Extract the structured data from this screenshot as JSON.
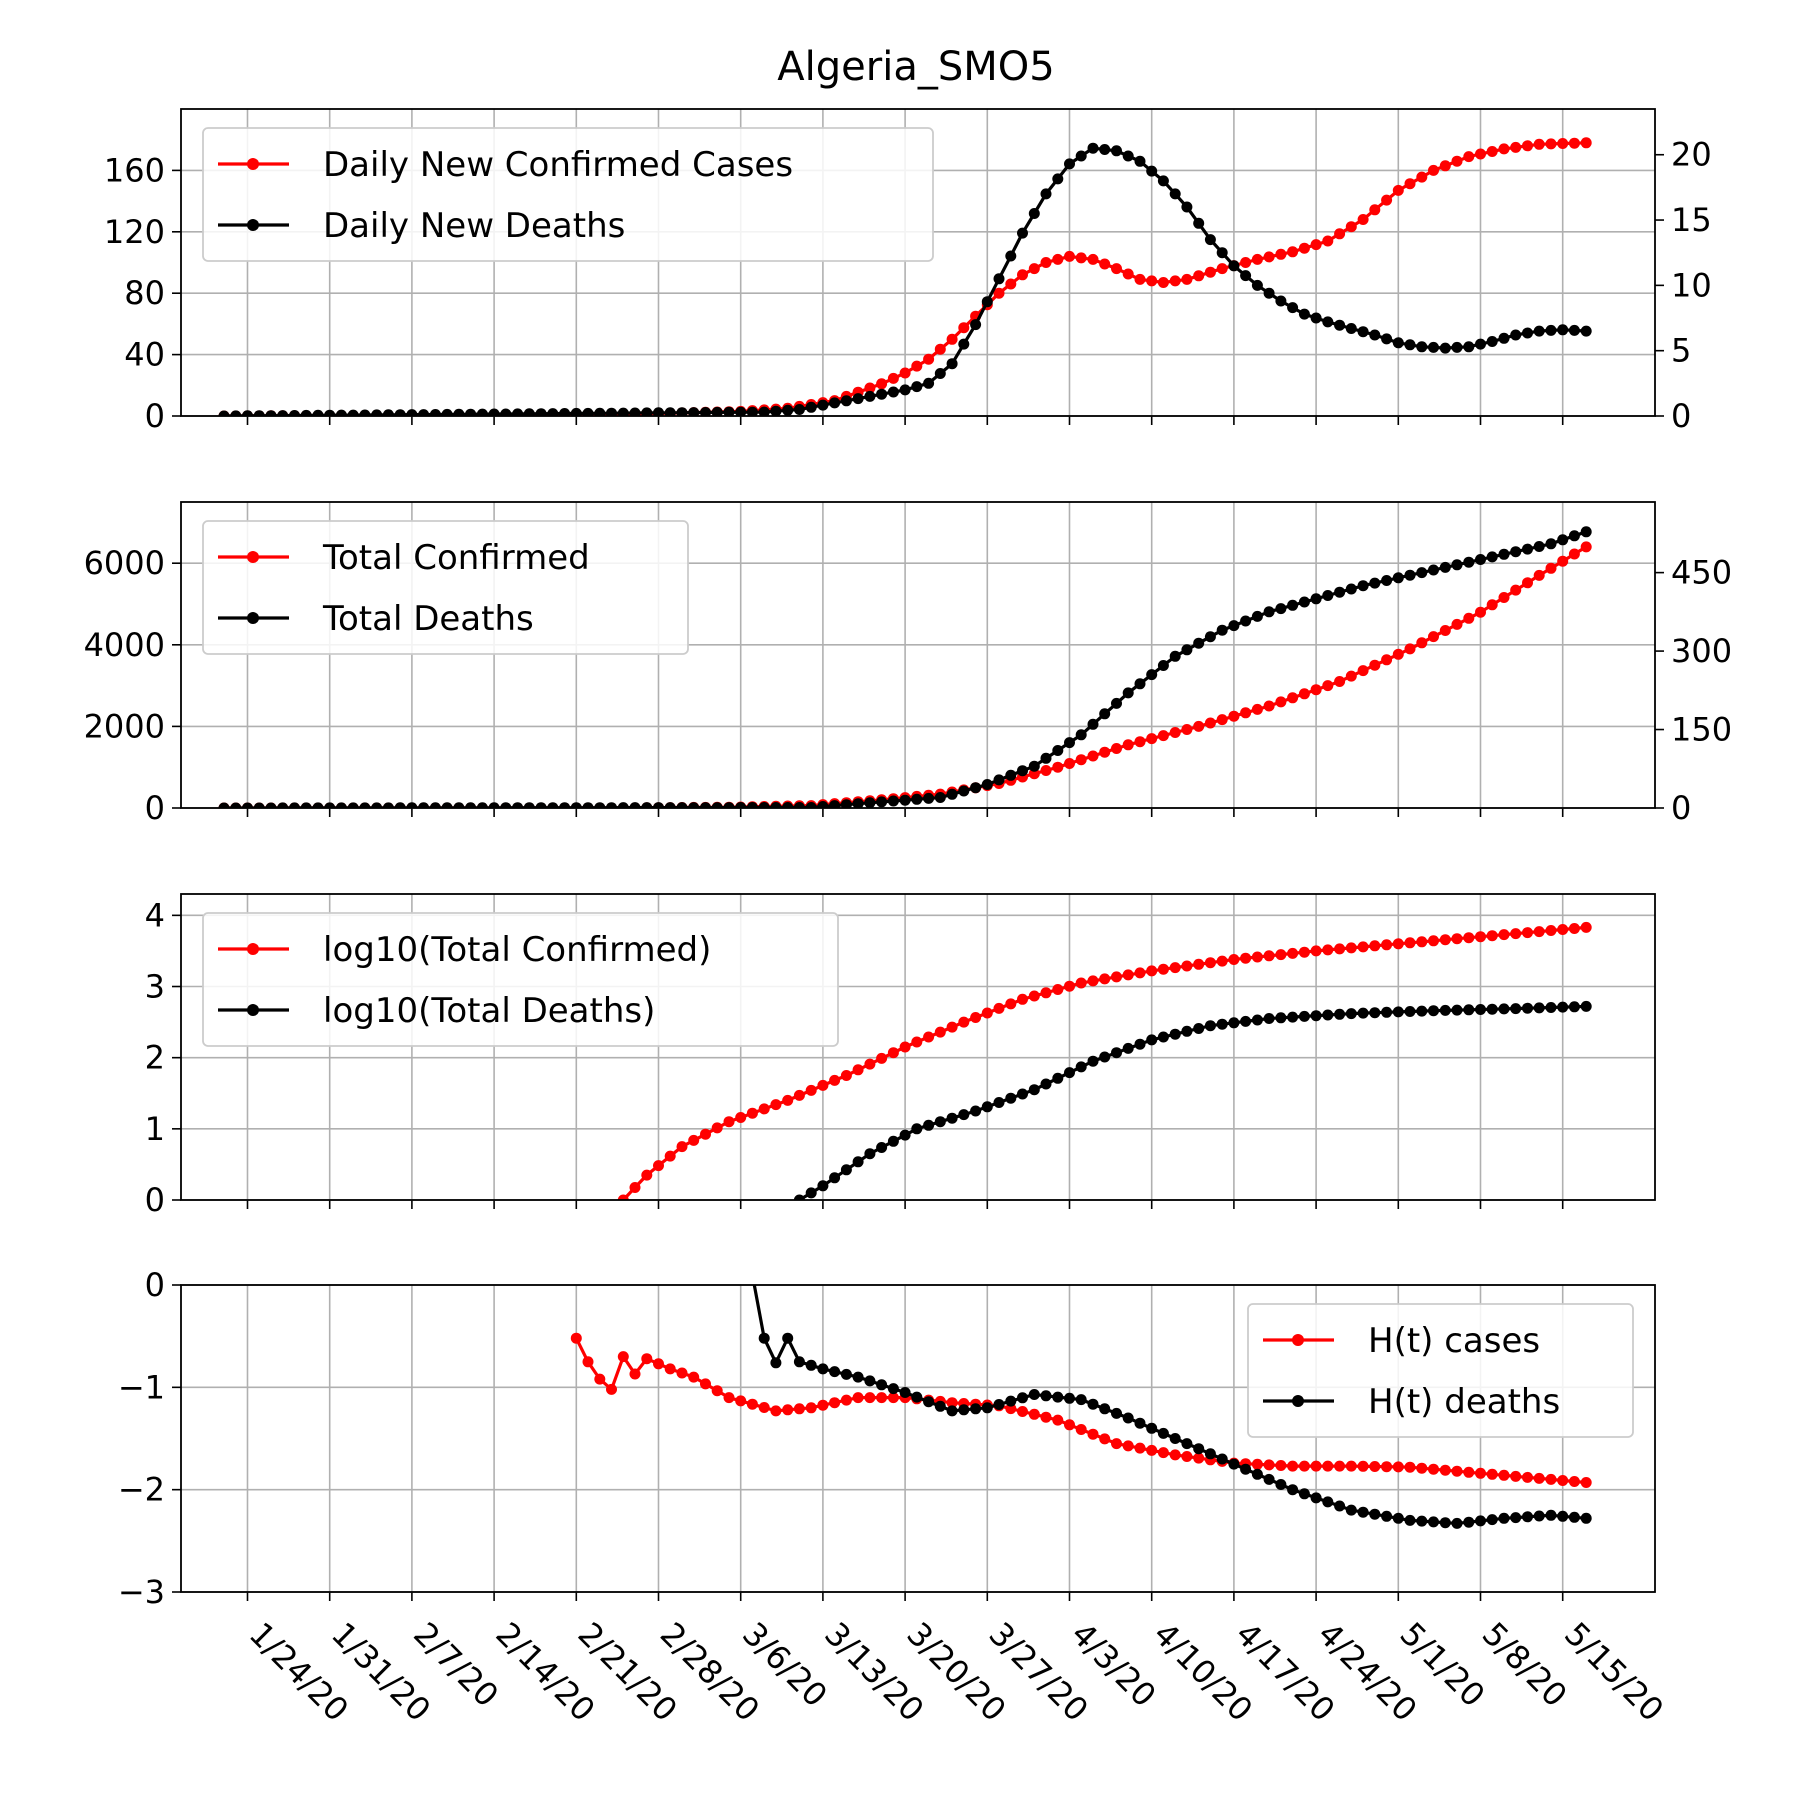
{
  "figure": {
    "title": "Algeria_SMO5"
  },
  "x_tick_labels": [
    "1/24/20",
    "1/31/20",
    "2/7/20",
    "2/14/20",
    "2/21/20",
    "2/28/20",
    "3/6/20",
    "3/13/20",
    "3/20/20",
    "3/27/20",
    "4/3/20",
    "4/10/20",
    "4/17/20",
    "4/24/20",
    "5/1/20",
    "5/8/20",
    "5/15/20"
  ],
  "colors": {
    "cases": "#ff0000",
    "deaths": "#000000",
    "grid": "#b0b0b0"
  },
  "chart_data": [
    {
      "type": "line",
      "panel": "daily",
      "x_start": "2020-01-22",
      "x_end": "2020-05-17",
      "xticks": [
        "1/24/20",
        "1/31/20",
        "2/7/20",
        "2/14/20",
        "2/21/20",
        "2/28/20",
        "3/6/20",
        "3/13/20",
        "3/20/20",
        "3/27/20",
        "4/3/20",
        "4/10/20",
        "4/17/20",
        "4/24/20",
        "5/1/20",
        "5/8/20",
        "5/15/20"
      ],
      "ylim": [
        0,
        200
      ],
      "yticks": [
        0,
        40,
        80,
        120,
        160
      ],
      "y2lim": [
        0,
        23.5
      ],
      "y2ticks": [
        0,
        5,
        10,
        15,
        20
      ],
      "legend_position": "upper-left",
      "grid": true,
      "series": [
        {
          "name": "Daily New Confirmed Cases",
          "axis": "left",
          "points": [
            [
              "2020-01-22",
              0
            ],
            [
              "2020-02-24",
              1
            ],
            [
              "2020-03-01",
              2
            ],
            [
              "2020-03-06",
              3
            ],
            [
              "2020-03-10",
              5
            ],
            [
              "2020-03-14",
              10
            ],
            [
              "2020-03-18",
              21
            ],
            [
              "2020-03-20",
              28
            ],
            [
              "2020-03-22",
              37
            ],
            [
              "2020-03-24",
              50
            ],
            [
              "2020-03-26",
              65
            ],
            [
              "2020-03-28",
              80
            ],
            [
              "2020-03-30",
              92
            ],
            [
              "2020-04-01",
              100
            ],
            [
              "2020-04-03",
              104
            ],
            [
              "2020-04-05",
              102
            ],
            [
              "2020-04-07",
              96
            ],
            [
              "2020-04-09",
              89
            ],
            [
              "2020-04-11",
              87
            ],
            [
              "2020-04-13",
              89
            ],
            [
              "2020-04-16",
              96
            ],
            [
              "2020-04-19",
              102
            ],
            [
              "2020-04-22",
              107
            ],
            [
              "2020-04-25",
              114
            ],
            [
              "2020-04-28",
              128
            ],
            [
              "2020-05-01",
              147
            ],
            [
              "2020-05-04",
              160
            ],
            [
              "2020-05-07",
              169
            ],
            [
              "2020-05-10",
              174
            ],
            [
              "2020-05-13",
              177
            ],
            [
              "2020-05-17",
              178
            ]
          ]
        },
        {
          "name": "Daily New Deaths",
          "axis": "right",
          "points": [
            [
              "2020-01-22",
              0
            ],
            [
              "2020-03-08",
              0.3
            ],
            [
              "2020-03-11",
              0.5
            ],
            [
              "2020-03-14",
              1.0
            ],
            [
              "2020-03-17",
              1.5
            ],
            [
              "2020-03-20",
              2.0
            ],
            [
              "2020-03-22",
              2.5
            ],
            [
              "2020-03-24",
              4
            ],
            [
              "2020-03-26",
              7
            ],
            [
              "2020-03-28",
              10.5
            ],
            [
              "2020-03-30",
              14
            ],
            [
              "2020-04-01",
              17
            ],
            [
              "2020-04-03",
              19.3
            ],
            [
              "2020-04-05",
              20.5
            ],
            [
              "2020-04-07",
              20.3
            ],
            [
              "2020-04-09",
              19.5
            ],
            [
              "2020-04-11",
              18.0
            ],
            [
              "2020-04-13",
              16.0
            ],
            [
              "2020-04-15",
              13.5
            ],
            [
              "2020-04-17",
              11.5
            ],
            [
              "2020-04-19",
              10
            ],
            [
              "2020-04-21",
              8.8
            ],
            [
              "2020-04-23",
              7.8
            ],
            [
              "2020-04-25",
              7.2
            ],
            [
              "2020-04-27",
              6.7
            ],
            [
              "2020-04-29",
              6.2
            ],
            [
              "2020-05-01",
              5.6
            ],
            [
              "2020-05-03",
              5.3
            ],
            [
              "2020-05-05",
              5.2
            ],
            [
              "2020-05-07",
              5.3
            ],
            [
              "2020-05-09",
              5.7
            ],
            [
              "2020-05-11",
              6.2
            ],
            [
              "2020-05-13",
              6.5
            ],
            [
              "2020-05-15",
              6.6
            ],
            [
              "2020-05-17",
              6.5
            ]
          ]
        }
      ]
    },
    {
      "type": "line",
      "panel": "totals",
      "x_start": "2020-01-22",
      "x_end": "2020-05-17",
      "xticks": [
        "1/24/20",
        "1/31/20",
        "2/7/20",
        "2/14/20",
        "2/21/20",
        "2/28/20",
        "3/6/20",
        "3/13/20",
        "3/20/20",
        "3/27/20",
        "4/3/20",
        "4/10/20",
        "4/17/20",
        "4/24/20",
        "5/1/20",
        "5/8/20",
        "5/15/20"
      ],
      "ylim": [
        0,
        7500
      ],
      "yticks": [
        0,
        2000,
        4000,
        6000
      ],
      "y2lim": [
        0,
        585
      ],
      "y2ticks": [
        0,
        150,
        300,
        450
      ],
      "legend_position": "upper-left",
      "grid": true,
      "series": [
        {
          "name": "Total Confirmed",
          "axis": "left",
          "points": [
            [
              "2020-01-22",
              0
            ],
            [
              "2020-02-25",
              1
            ],
            [
              "2020-03-05",
              20
            ],
            [
              "2020-03-12",
              60
            ],
            [
              "2020-03-18",
              200
            ],
            [
              "2020-03-23",
              340
            ],
            [
              "2020-03-28",
              600
            ],
            [
              "2020-04-02",
              1000
            ],
            [
              "2020-04-08",
              1550
            ],
            [
              "2020-04-14",
              2000
            ],
            [
              "2020-04-20",
              2500
            ],
            [
              "2020-04-26",
              3100
            ],
            [
              "2020-05-02",
              3900
            ],
            [
              "2020-05-08",
              4800
            ],
            [
              "2020-05-13",
              5700
            ],
            [
              "2020-05-17",
              6400
            ]
          ]
        },
        {
          "name": "Total Deaths",
          "axis": "right",
          "points": [
            [
              "2020-01-22",
              0
            ],
            [
              "2020-03-12",
              1
            ],
            [
              "2020-03-17",
              10
            ],
            [
              "2020-03-23",
              20
            ],
            [
              "2020-03-27",
              45
            ],
            [
              "2020-03-31",
              80
            ],
            [
              "2020-04-04",
              140
            ],
            [
              "2020-04-08",
              220
            ],
            [
              "2020-04-12",
              290
            ],
            [
              "2020-04-16",
              340
            ],
            [
              "2020-04-20",
              375
            ],
            [
              "2020-04-24",
              400
            ],
            [
              "2020-04-28",
              425
            ],
            [
              "2020-05-02",
              445
            ],
            [
              "2020-05-06",
              465
            ],
            [
              "2020-05-10",
              485
            ],
            [
              "2020-05-14",
              505
            ],
            [
              "2020-05-17",
              528
            ]
          ]
        }
      ]
    },
    {
      "type": "line",
      "panel": "log",
      "x_start": "2020-01-22",
      "x_end": "2020-05-17",
      "xticks": [
        "1/24/20",
        "1/31/20",
        "2/7/20",
        "2/14/20",
        "2/21/20",
        "2/28/20",
        "3/6/20",
        "3/13/20",
        "3/20/20",
        "3/27/20",
        "4/3/20",
        "4/10/20",
        "4/17/20",
        "4/24/20",
        "5/1/20",
        "5/8/20",
        "5/15/20"
      ],
      "ylim": [
        0,
        4.3
      ],
      "yticks": [
        0,
        1,
        2,
        3,
        4
      ],
      "legend_position": "upper-left",
      "grid": true,
      "series": [
        {
          "name": "log10(Total Confirmed)",
          "axis": "left",
          "points": [
            [
              "2020-02-25",
              0
            ],
            [
              "2020-02-27",
              0.35
            ],
            [
              "2020-03-01",
              0.75
            ],
            [
              "2020-03-05",
              1.1
            ],
            [
              "2020-03-10",
              1.4
            ],
            [
              "2020-03-15",
              1.75
            ],
            [
              "2020-03-20",
              2.15
            ],
            [
              "2020-03-25",
              2.5
            ],
            [
              "2020-03-30",
              2.82
            ],
            [
              "2020-04-04",
              3.05
            ],
            [
              "2020-04-10",
              3.22
            ],
            [
              "2020-04-17",
              3.38
            ],
            [
              "2020-04-24",
              3.5
            ],
            [
              "2020-05-01",
              3.6
            ],
            [
              "2020-05-08",
              3.7
            ],
            [
              "2020-05-17",
              3.83
            ]
          ]
        },
        {
          "name": "log10(Total Deaths)",
          "axis": "left",
          "points": [
            [
              "2020-03-11",
              0
            ],
            [
              "2020-03-13",
              0.2
            ],
            [
              "2020-03-17",
              0.65
            ],
            [
              "2020-03-21",
              1.0
            ],
            [
              "2020-03-26",
              1.25
            ],
            [
              "2020-03-31",
              1.55
            ],
            [
              "2020-04-05",
              1.95
            ],
            [
              "2020-04-10",
              2.25
            ],
            [
              "2020-04-15",
              2.45
            ],
            [
              "2020-04-20",
              2.55
            ],
            [
              "2020-04-27",
              2.62
            ],
            [
              "2020-05-04",
              2.66
            ],
            [
              "2020-05-11",
              2.69
            ],
            [
              "2020-05-17",
              2.72
            ]
          ]
        }
      ]
    },
    {
      "type": "line",
      "panel": "hurst",
      "x_start": "2020-01-22",
      "x_end": "2020-05-17",
      "xticks": [
        "1/24/20",
        "1/31/20",
        "2/7/20",
        "2/14/20",
        "2/21/20",
        "2/28/20",
        "3/6/20",
        "3/13/20",
        "3/20/20",
        "3/27/20",
        "4/3/20",
        "4/10/20",
        "4/17/20",
        "4/24/20",
        "5/1/20",
        "5/8/20",
        "5/15/20"
      ],
      "ylim": [
        -3,
        0
      ],
      "yticks": [
        -3,
        -2,
        -1,
        0
      ],
      "legend_position": "upper-right",
      "grid": true,
      "series": [
        {
          "name": "H(t) cases",
          "axis": "left",
          "points": [
            [
              "2020-02-21",
              -0.52
            ],
            [
              "2020-02-22",
              -0.75
            ],
            [
              "2020-02-23",
              -0.92
            ],
            [
              "2020-02-24",
              -1.02
            ],
            [
              "2020-02-25",
              -0.7
            ],
            [
              "2020-02-26",
              -0.87
            ],
            [
              "2020-02-27",
              -0.72
            ],
            [
              "2020-02-29",
              -0.82
            ],
            [
              "2020-03-02",
              -0.9
            ],
            [
              "2020-03-05",
              -1.1
            ],
            [
              "2020-03-09",
              -1.23
            ],
            [
              "2020-03-12",
              -1.2
            ],
            [
              "2020-03-16",
              -1.1
            ],
            [
              "2020-03-20",
              -1.1
            ],
            [
              "2020-03-24",
              -1.15
            ],
            [
              "2020-03-28",
              -1.18
            ],
            [
              "2020-04-02",
              -1.32
            ],
            [
              "2020-04-07",
              -1.55
            ],
            [
              "2020-04-12",
              -1.66
            ],
            [
              "2020-04-17",
              -1.74
            ],
            [
              "2020-04-22",
              -1.77
            ],
            [
              "2020-04-27",
              -1.77
            ],
            [
              "2020-05-02",
              -1.78
            ],
            [
              "2020-05-07",
              -1.83
            ],
            [
              "2020-05-12",
              -1.88
            ],
            [
              "2020-05-17",
              -1.93
            ]
          ]
        },
        {
          "name": "H(t) deaths",
          "axis": "left",
          "points": [
            [
              "2020-03-07",
              0.1
            ],
            [
              "2020-03-08",
              -0.52
            ],
            [
              "2020-03-09",
              -0.76
            ],
            [
              "2020-03-10",
              -0.52
            ],
            [
              "2020-03-11",
              -0.75
            ],
            [
              "2020-03-13",
              -0.82
            ],
            [
              "2020-03-16",
              -0.9
            ],
            [
              "2020-03-20",
              -1.05
            ],
            [
              "2020-03-24",
              -1.23
            ],
            [
              "2020-03-27",
              -1.2
            ],
            [
              "2020-03-31",
              -1.07
            ],
            [
              "2020-04-04",
              -1.12
            ],
            [
              "2020-04-08",
              -1.3
            ],
            [
              "2020-04-12",
              -1.5
            ],
            [
              "2020-04-17",
              -1.75
            ],
            [
              "2020-04-22",
              -2.0
            ],
            [
              "2020-04-27",
              -2.2
            ],
            [
              "2020-05-02",
              -2.3
            ],
            [
              "2020-05-06",
              -2.33
            ],
            [
              "2020-05-10",
              -2.28
            ],
            [
              "2020-05-14",
              -2.25
            ],
            [
              "2020-05-17",
              -2.28
            ]
          ]
        }
      ]
    }
  ]
}
